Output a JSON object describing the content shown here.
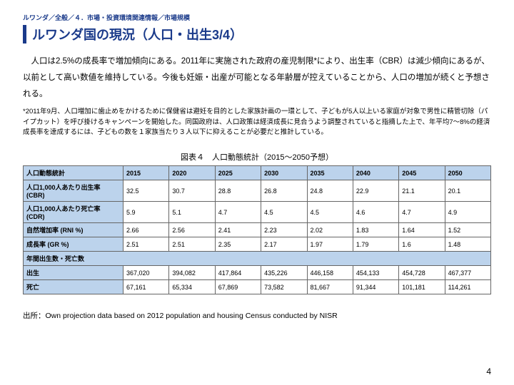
{
  "breadcrumb": "ルワンダ／全般／４．市場・投資環境関連情報／市場規模",
  "title": "ルワンダ国の現況（人口・出生3/4）",
  "paragraph": "人口は2.5%の成長率で増加傾向にある。2011年に実施された政府の産児制限*により、出生率（CBR）は減少傾向にあるが、以前として高い数値を維持している。今後も妊娠・出産が可能となる年齢層が控えていることから、人口の増加が続くと予想される。",
  "footnote": "*2011年9月、人口増加に歯止めをかけるために保健省は避妊を目的とした家族計画の一環として、子どもが5人以上いる家庭が対象で男性に精管切除（パイプカット）を呼び掛けるキャンペーンを開始した。同国政府は、人口政策は経済成長に見合うよう調整されていると指摘した上で、年平均7〜8%の経済成長率を達成するには、子どもの数を１家族当たり３人以下に抑えることが必要だと推計している。",
  "table": {
    "caption": "図表４　人口動態統計（2015〜2050予想）",
    "header": [
      "人口動態統計",
      "2015",
      "2020",
      "2025",
      "2030",
      "2035",
      "2040",
      "2045",
      "2050"
    ],
    "rows": [
      {
        "label": "人口1,000人あたり出生率 (CBR)",
        "cells": [
          "32.5",
          "30.7",
          "28.8",
          "26.8",
          "24.8",
          "22.9",
          "21.1",
          "20.1"
        ]
      },
      {
        "label": "人口1,000人あたり死亡率 (CDR)",
        "cells": [
          "5.9",
          "5.1",
          "4.7",
          "4.5",
          "4.5",
          "4.6",
          "4.7",
          "4.9"
        ]
      },
      {
        "label": "自然増加率 (RNI %)",
        "cells": [
          "2.66",
          "2.56",
          "2.41",
          "2.23",
          "2.02",
          "1.83",
          "1.64",
          "1.52"
        ]
      },
      {
        "label": "成長率 (GR %)",
        "cells": [
          "2.51",
          "2.51",
          "2.35",
          "2.17",
          "1.97",
          "1.79",
          "1.6",
          "1.48"
        ]
      }
    ],
    "subheader": "年間出生数・死亡数",
    "rows2": [
      {
        "label": "出生",
        "cells": [
          "367,020",
          "394,082",
          "417,864",
          "435,226",
          "446,158",
          "454,133",
          "454,728",
          "467,377"
        ]
      },
      {
        "label": "死亡",
        "cells": [
          "67,161",
          "65,334",
          "67,869",
          "73,582",
          "81,667",
          "91,344",
          "101,181",
          "114,261"
        ]
      }
    ]
  },
  "source": "出所：Own projection data based on 2012 population and housing Census conducted by NISR",
  "pageNumber": "4"
}
